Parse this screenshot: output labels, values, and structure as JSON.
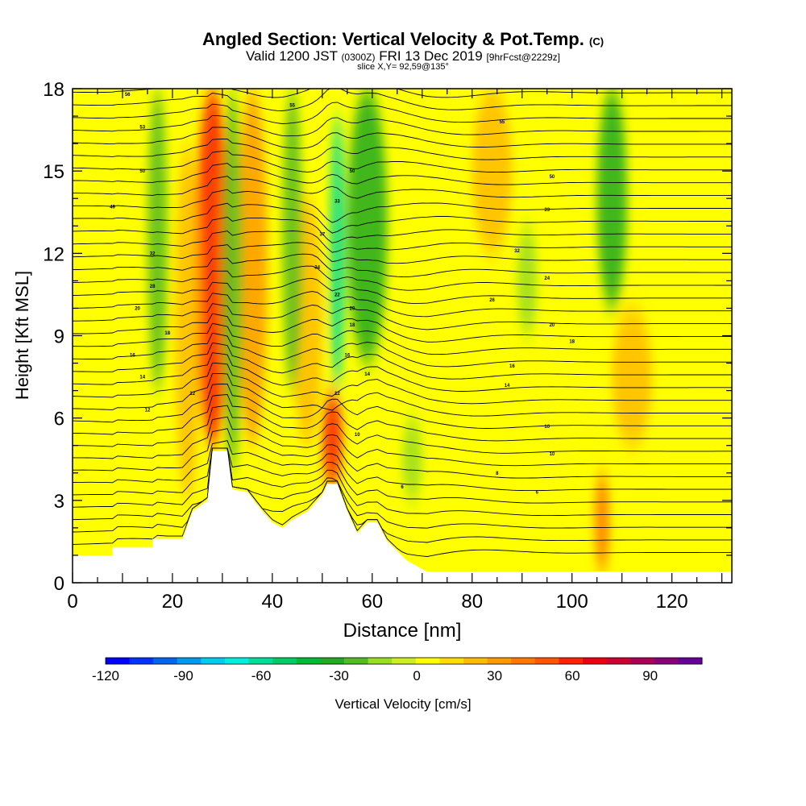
{
  "title": {
    "main": "Angled Section: Vertical Velocity & Pot.Temp.",
    "unit_tag": "(C)"
  },
  "subtitle": {
    "valid": "Valid 1200 JST",
    "utc": "(0300Z)",
    "date": "FRI 13 Dec 2019",
    "fcst": "[9hrFcst@2229z]"
  },
  "slice_note": "slice X,Y= 92,59@135°",
  "chart_data": {
    "type": "heatmap",
    "xlabel": "Distance [nm]",
    "ylabel": "Height [Kft MSL]",
    "xlim": [
      0,
      132
    ],
    "ylim": [
      0,
      18
    ],
    "x_ticks": [
      0,
      20,
      40,
      60,
      80,
      100,
      120
    ],
    "y_ticks": [
      0,
      3,
      6,
      9,
      12,
      15,
      18
    ],
    "colorbar": {
      "label": "Vertical Velocity [cm/s]",
      "range": [
        -120,
        110
      ],
      "ticks": [
        -120,
        -90,
        -60,
        -30,
        0,
        30,
        60,
        90
      ],
      "colors": [
        "#0000ff",
        "#0033ff",
        "#0066ee",
        "#0099ee",
        "#00ccee",
        "#00eedd",
        "#00dd99",
        "#00cc66",
        "#00bb33",
        "#22aa22",
        "#55bb22",
        "#99dd22",
        "#ccee22",
        "#ffff00",
        "#ffdd00",
        "#ffbb00",
        "#ff9900",
        "#ff7700",
        "#ff5500",
        "#ff2200",
        "#ee0011",
        "#cc0033",
        "#aa0055",
        "#880077",
        "#660099"
      ]
    },
    "background_color": "#ffff00",
    "terrain": [
      [
        0,
        1
      ],
      [
        8,
        1
      ],
      [
        8,
        1.3
      ],
      [
        16,
        1.3
      ],
      [
        16,
        1.6
      ],
      [
        22,
        1.6
      ],
      [
        24,
        2.6
      ],
      [
        27,
        3
      ],
      [
        28,
        4.8
      ],
      [
        31,
        4.8
      ],
      [
        32,
        3.4
      ],
      [
        35,
        3.3
      ],
      [
        38,
        2.6
      ],
      [
        40,
        2.2
      ],
      [
        42,
        2
      ],
      [
        44,
        2.3
      ],
      [
        47,
        2.6
      ],
      [
        50,
        3.2
      ],
      [
        51,
        3.6
      ],
      [
        53,
        3.6
      ],
      [
        55,
        2.6
      ],
      [
        57,
        1.8
      ],
      [
        59,
        2.2
      ],
      [
        61,
        2.2
      ],
      [
        63,
        1.5
      ],
      [
        67,
        0.8
      ],
      [
        71,
        0.4
      ],
      [
        132,
        0.4
      ]
    ],
    "vertical_velocity_features": [
      {
        "kind": "up",
        "x": 28,
        "x_width": 3.5,
        "y_from": 5,
        "y_to": 18,
        "value": 60
      },
      {
        "kind": "up",
        "x": 52,
        "x_width": 2,
        "y_from": 3.5,
        "y_to": 7,
        "value": 60
      },
      {
        "kind": "up",
        "x": 36,
        "x_width": 3,
        "y_from": 5,
        "y_to": 18,
        "value": 30
      },
      {
        "kind": "up",
        "x": 47,
        "x_width": 3,
        "y_from": 5,
        "y_to": 14,
        "value": 25
      },
      {
        "kind": "up",
        "x": 23,
        "x_width": 2.5,
        "y_from": 3,
        "y_to": 16,
        "value": 25
      },
      {
        "kind": "up",
        "x": 106,
        "x_width": 1.5,
        "y_from": 0.4,
        "y_to": 4,
        "value": 40
      },
      {
        "kind": "up",
        "x": 84,
        "x_width": 4,
        "y_from": 12,
        "y_to": 18,
        "value": 20
      },
      {
        "kind": "up",
        "x": 112,
        "x_width": 4,
        "y_from": 5,
        "y_to": 10,
        "value": 20
      },
      {
        "kind": "down",
        "x": 53,
        "x_width": 1.5,
        "y_from": 7,
        "y_to": 17,
        "value": -60
      },
      {
        "kind": "down",
        "x": 59,
        "x_width": 4,
        "y_from": 8,
        "y_to": 18,
        "value": -35
      },
      {
        "kind": "down",
        "x": 17,
        "x_width": 2,
        "y_from": 7,
        "y_to": 18,
        "value": -25
      },
      {
        "kind": "down",
        "x": 32,
        "x_width": 2,
        "y_from": 4,
        "y_to": 18,
        "value": -25
      },
      {
        "kind": "down",
        "x": 44,
        "x_width": 2,
        "y_from": 7,
        "y_to": 18,
        "value": -25
      },
      {
        "kind": "down",
        "x": 108,
        "x_width": 3,
        "y_from": 10,
        "y_to": 18,
        "value": -30
      },
      {
        "kind": "down",
        "x": 91,
        "x_width": 2,
        "y_from": 9,
        "y_to": 13,
        "value": -10
      },
      {
        "kind": "down",
        "x": 68,
        "x_width": 2,
        "y_from": 3,
        "y_to": 6,
        "value": -10
      }
    ],
    "isentrope_labels": [
      {
        "text": "56",
        "x": 11,
        "y": 17.8
      },
      {
        "text": "55",
        "x": 44,
        "y": 17.4
      },
      {
        "text": "55",
        "x": 86,
        "y": 16.8
      },
      {
        "text": "53",
        "x": 14,
        "y": 16.6
      },
      {
        "text": "50",
        "x": 14,
        "y": 15
      },
      {
        "text": "50",
        "x": 56,
        "y": 15
      },
      {
        "text": "50",
        "x": 96,
        "y": 14.8
      },
      {
        "text": "49",
        "x": 8,
        "y": 13.7
      },
      {
        "text": "33",
        "x": 53,
        "y": 13.9
      },
      {
        "text": "33",
        "x": 95,
        "y": 13.6
      },
      {
        "text": "37",
        "x": 50,
        "y": 12.7
      },
      {
        "text": "32",
        "x": 16,
        "y": 12
      },
      {
        "text": "32",
        "x": 89,
        "y": 12.1
      },
      {
        "text": "34",
        "x": 49,
        "y": 11.5
      },
      {
        "text": "28",
        "x": 16,
        "y": 10.8
      },
      {
        "text": "24",
        "x": 95,
        "y": 11.1
      },
      {
        "text": "22",
        "x": 53,
        "y": 10.5
      },
      {
        "text": "20",
        "x": 13,
        "y": 10
      },
      {
        "text": "20",
        "x": 56,
        "y": 10
      },
      {
        "text": "26",
        "x": 84,
        "y": 10.3
      },
      {
        "text": "18",
        "x": 56,
        "y": 9.4
      },
      {
        "text": "20",
        "x": 96,
        "y": 9.4
      },
      {
        "text": "18",
        "x": 19,
        "y": 9.1
      },
      {
        "text": "18",
        "x": 100,
        "y": 8.8
      },
      {
        "text": "16",
        "x": 12,
        "y": 8.3
      },
      {
        "text": "16",
        "x": 55,
        "y": 8.3
      },
      {
        "text": "16",
        "x": 88,
        "y": 7.9
      },
      {
        "text": "14",
        "x": 14,
        "y": 7.5
      },
      {
        "text": "14",
        "x": 59,
        "y": 7.6
      },
      {
        "text": "14",
        "x": 87,
        "y": 7.2
      },
      {
        "text": "12",
        "x": 24,
        "y": 6.9
      },
      {
        "text": "12",
        "x": 53,
        "y": 6.9
      },
      {
        "text": "12",
        "x": 15,
        "y": 6.3
      },
      {
        "text": "10",
        "x": 57,
        "y": 5.4
      },
      {
        "text": "10",
        "x": 95,
        "y": 5.7
      },
      {
        "text": "10",
        "x": 96,
        "y": 4.7
      },
      {
        "text": "8",
        "x": 85,
        "y": 4
      },
      {
        "text": "6",
        "x": 66,
        "y": 3.5
      },
      {
        "text": "6",
        "x": 93,
        "y": 3.3
      }
    ]
  }
}
